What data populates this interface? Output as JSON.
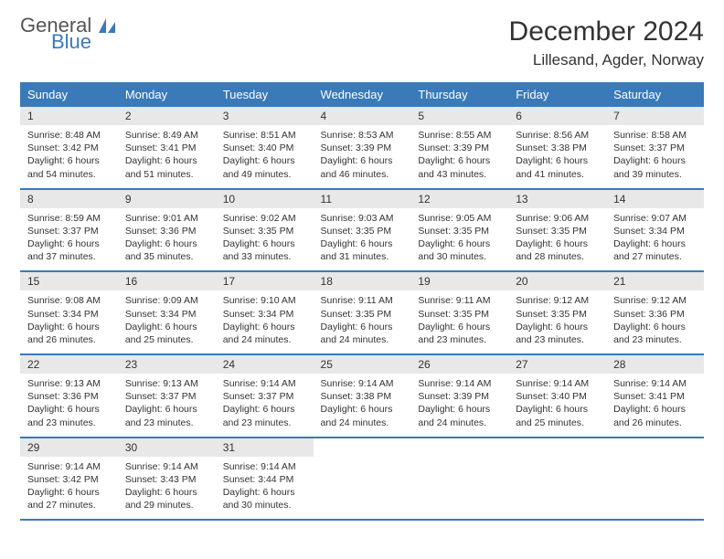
{
  "logo": {
    "text_top": "General",
    "text_bottom": "Blue"
  },
  "title": "December 2024",
  "location": "Lillesand, Agder, Norway",
  "colors": {
    "header_bg": "#3a7ab8",
    "header_text": "#ffffff",
    "daynum_bg": "#e8e8e8",
    "rule": "#3a7ab8",
    "logo_accent": "#3a7ab8"
  },
  "day_headers": [
    "Sunday",
    "Monday",
    "Tuesday",
    "Wednesday",
    "Thursday",
    "Friday",
    "Saturday"
  ],
  "weeks": [
    [
      {
        "n": "1",
        "sunrise": "8:48 AM",
        "sunset": "3:42 PM",
        "daylight": "6 hours and 54 minutes."
      },
      {
        "n": "2",
        "sunrise": "8:49 AM",
        "sunset": "3:41 PM",
        "daylight": "6 hours and 51 minutes."
      },
      {
        "n": "3",
        "sunrise": "8:51 AM",
        "sunset": "3:40 PM",
        "daylight": "6 hours and 49 minutes."
      },
      {
        "n": "4",
        "sunrise": "8:53 AM",
        "sunset": "3:39 PM",
        "daylight": "6 hours and 46 minutes."
      },
      {
        "n": "5",
        "sunrise": "8:55 AM",
        "sunset": "3:39 PM",
        "daylight": "6 hours and 43 minutes."
      },
      {
        "n": "6",
        "sunrise": "8:56 AM",
        "sunset": "3:38 PM",
        "daylight": "6 hours and 41 minutes."
      },
      {
        "n": "7",
        "sunrise": "8:58 AM",
        "sunset": "3:37 PM",
        "daylight": "6 hours and 39 minutes."
      }
    ],
    [
      {
        "n": "8",
        "sunrise": "8:59 AM",
        "sunset": "3:37 PM",
        "daylight": "6 hours and 37 minutes."
      },
      {
        "n": "9",
        "sunrise": "9:01 AM",
        "sunset": "3:36 PM",
        "daylight": "6 hours and 35 minutes."
      },
      {
        "n": "10",
        "sunrise": "9:02 AM",
        "sunset": "3:35 PM",
        "daylight": "6 hours and 33 minutes."
      },
      {
        "n": "11",
        "sunrise": "9:03 AM",
        "sunset": "3:35 PM",
        "daylight": "6 hours and 31 minutes."
      },
      {
        "n": "12",
        "sunrise": "9:05 AM",
        "sunset": "3:35 PM",
        "daylight": "6 hours and 30 minutes."
      },
      {
        "n": "13",
        "sunrise": "9:06 AM",
        "sunset": "3:35 PM",
        "daylight": "6 hours and 28 minutes."
      },
      {
        "n": "14",
        "sunrise": "9:07 AM",
        "sunset": "3:34 PM",
        "daylight": "6 hours and 27 minutes."
      }
    ],
    [
      {
        "n": "15",
        "sunrise": "9:08 AM",
        "sunset": "3:34 PM",
        "daylight": "6 hours and 26 minutes."
      },
      {
        "n": "16",
        "sunrise": "9:09 AM",
        "sunset": "3:34 PM",
        "daylight": "6 hours and 25 minutes."
      },
      {
        "n": "17",
        "sunrise": "9:10 AM",
        "sunset": "3:34 PM",
        "daylight": "6 hours and 24 minutes."
      },
      {
        "n": "18",
        "sunrise": "9:11 AM",
        "sunset": "3:35 PM",
        "daylight": "6 hours and 24 minutes."
      },
      {
        "n": "19",
        "sunrise": "9:11 AM",
        "sunset": "3:35 PM",
        "daylight": "6 hours and 23 minutes."
      },
      {
        "n": "20",
        "sunrise": "9:12 AM",
        "sunset": "3:35 PM",
        "daylight": "6 hours and 23 minutes."
      },
      {
        "n": "21",
        "sunrise": "9:12 AM",
        "sunset": "3:36 PM",
        "daylight": "6 hours and 23 minutes."
      }
    ],
    [
      {
        "n": "22",
        "sunrise": "9:13 AM",
        "sunset": "3:36 PM",
        "daylight": "6 hours and 23 minutes."
      },
      {
        "n": "23",
        "sunrise": "9:13 AM",
        "sunset": "3:37 PM",
        "daylight": "6 hours and 23 minutes."
      },
      {
        "n": "24",
        "sunrise": "9:14 AM",
        "sunset": "3:37 PM",
        "daylight": "6 hours and 23 minutes."
      },
      {
        "n": "25",
        "sunrise": "9:14 AM",
        "sunset": "3:38 PM",
        "daylight": "6 hours and 24 minutes."
      },
      {
        "n": "26",
        "sunrise": "9:14 AM",
        "sunset": "3:39 PM",
        "daylight": "6 hours and 24 minutes."
      },
      {
        "n": "27",
        "sunrise": "9:14 AM",
        "sunset": "3:40 PM",
        "daylight": "6 hours and 25 minutes."
      },
      {
        "n": "28",
        "sunrise": "9:14 AM",
        "sunset": "3:41 PM",
        "daylight": "6 hours and 26 minutes."
      }
    ],
    [
      {
        "n": "29",
        "sunrise": "9:14 AM",
        "sunset": "3:42 PM",
        "daylight": "6 hours and 27 minutes."
      },
      {
        "n": "30",
        "sunrise": "9:14 AM",
        "sunset": "3:43 PM",
        "daylight": "6 hours and 29 minutes."
      },
      {
        "n": "31",
        "sunrise": "9:14 AM",
        "sunset": "3:44 PM",
        "daylight": "6 hours and 30 minutes."
      },
      null,
      null,
      null,
      null
    ]
  ],
  "labels": {
    "sunrise": "Sunrise:",
    "sunset": "Sunset:",
    "daylight": "Daylight:"
  }
}
